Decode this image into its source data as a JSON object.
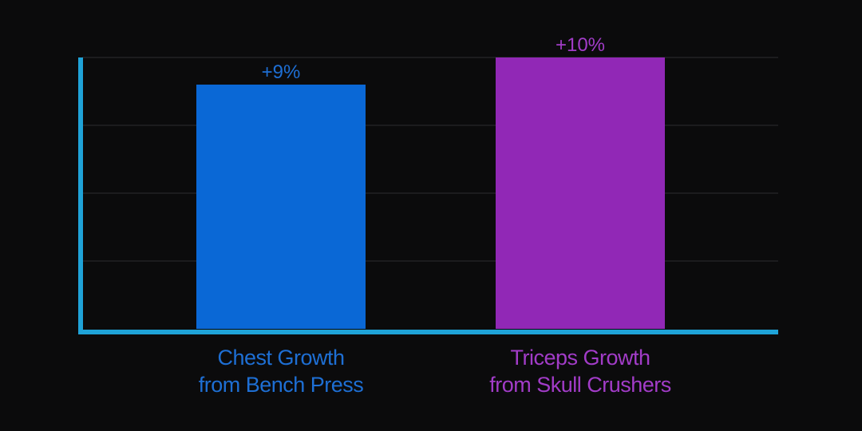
{
  "chart_data": {
    "type": "bar",
    "categories": [
      "Chest Growth\nfrom Bench Press",
      "Triceps Growth\nfrom Skull Crushers"
    ],
    "category_lines": [
      [
        "Chest Growth",
        "from Bench Press"
      ],
      [
        "Triceps Growth",
        "from Skull Crushers"
      ]
    ],
    "values": [
      9,
      10
    ],
    "value_labels": [
      "+9%",
      "+10%"
    ],
    "bar_colors": [
      "#0a68d6",
      "#9128b6"
    ],
    "label_colors": [
      "#1e6fd4",
      "#a23cc8"
    ],
    "axis_color": "#1fa3d8",
    "grid": true,
    "ylim": [
      0,
      10
    ],
    "title": "",
    "xlabel": "",
    "ylabel": ""
  }
}
